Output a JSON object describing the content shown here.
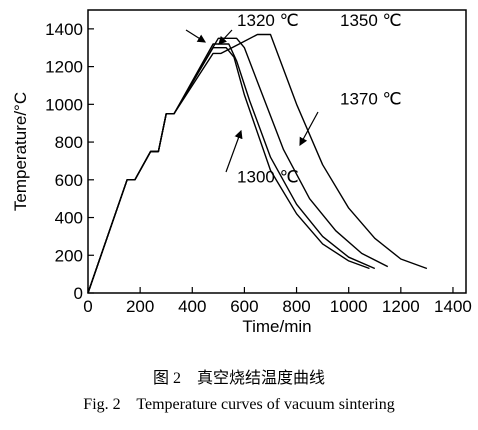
{
  "chart_data": {
    "type": "line",
    "xlabel": "Time/min",
    "ylabel": "Temperature/°C",
    "xlim": [
      0,
      1450
    ],
    "ylim": [
      0,
      1500
    ],
    "xticks": [
      0,
      200,
      400,
      600,
      800,
      1000,
      1200,
      1400
    ],
    "yticks": [
      0,
      200,
      400,
      600,
      800,
      1000,
      1200,
      1400
    ],
    "grid": false,
    "legend": "none",
    "series": [
      {
        "name": "1300 ℃",
        "x": [
          0,
          150,
          180,
          240,
          270,
          300,
          330,
          480,
          530,
          560,
          600,
          700,
          800,
          900,
          1000,
          1080
        ],
        "y": [
          0,
          600,
          600,
          750,
          750,
          950,
          950,
          1300,
          1300,
          1250,
          1050,
          650,
          420,
          260,
          170,
          130
        ]
      },
      {
        "name": "1320 ℃",
        "x": [
          0,
          150,
          180,
          240,
          270,
          300,
          330,
          480,
          540,
          570,
          620,
          700,
          800,
          900,
          1000,
          1100
        ],
        "y": [
          0,
          600,
          600,
          750,
          750,
          950,
          950,
          1320,
          1320,
          1230,
          1020,
          720,
          470,
          300,
          190,
          130
        ]
      },
      {
        "name": "1350 ℃",
        "x": [
          0,
          150,
          180,
          240,
          270,
          300,
          330,
          500,
          570,
          600,
          650,
          750,
          850,
          950,
          1050,
          1150
        ],
        "y": [
          0,
          600,
          600,
          750,
          750,
          950,
          950,
          1350,
          1350,
          1300,
          1120,
          760,
          500,
          330,
          210,
          140
        ]
      },
      {
        "name": "1370 ℃",
        "x": [
          0,
          150,
          180,
          240,
          270,
          300,
          330,
          480,
          510,
          580,
          650,
          700,
          800,
          900,
          1000,
          1100,
          1200,
          1300
        ],
        "y": [
          0,
          600,
          600,
          750,
          750,
          950,
          950,
          1270,
          1270,
          1320,
          1370,
          1370,
          1000,
          680,
          450,
          290,
          180,
          130
        ]
      }
    ],
    "annotations": [
      {
        "text": "1320 ℃",
        "x": 690,
        "y": 1415
      },
      {
        "text": "1350 ℃",
        "x": 1085,
        "y": 1415
      },
      {
        "text": "1370 ℃",
        "x": 1085,
        "y": 1000
      },
      {
        "text": "1300 ℃",
        "x": 690,
        "y": 585
      }
    ]
  },
  "caption": {
    "cn": "图 2    真空烧结温度曲线",
    "en": "Fig. 2    Temperature curves of vacuum sintering"
  }
}
